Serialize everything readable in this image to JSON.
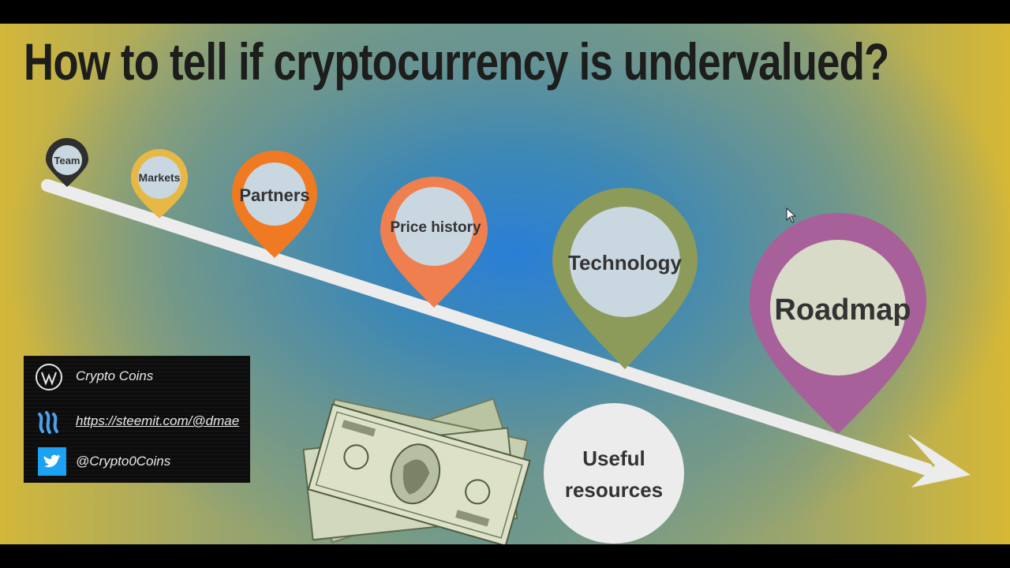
{
  "title": "How to tell if cryptocurrency is undervalued?",
  "pins": [
    {
      "label": "Team",
      "color": "#2f2f2f"
    },
    {
      "label": "Markets",
      "color": "#e8b844"
    },
    {
      "label": "Partners",
      "color": "#f07a22"
    },
    {
      "label": "Price history",
      "color": "#f07f4f"
    },
    {
      "label": "Technology",
      "color": "#8c9a5a"
    },
    {
      "label": "Roadmap",
      "color": "#a8609a"
    }
  ],
  "resources": {
    "line1": "Useful",
    "line2": "resources"
  },
  "social": {
    "channel": "Crypto Coins",
    "steemit": "https://steemit.com/@dmae",
    "twitter": "@Crypto0Coins"
  },
  "colors": {
    "arrow": "#ececec",
    "pin_center": "#c9d7e0",
    "resources_bg": "#ececec",
    "twitter_blue": "#1da1f2",
    "steem_blue": "#4ba2f2"
  }
}
